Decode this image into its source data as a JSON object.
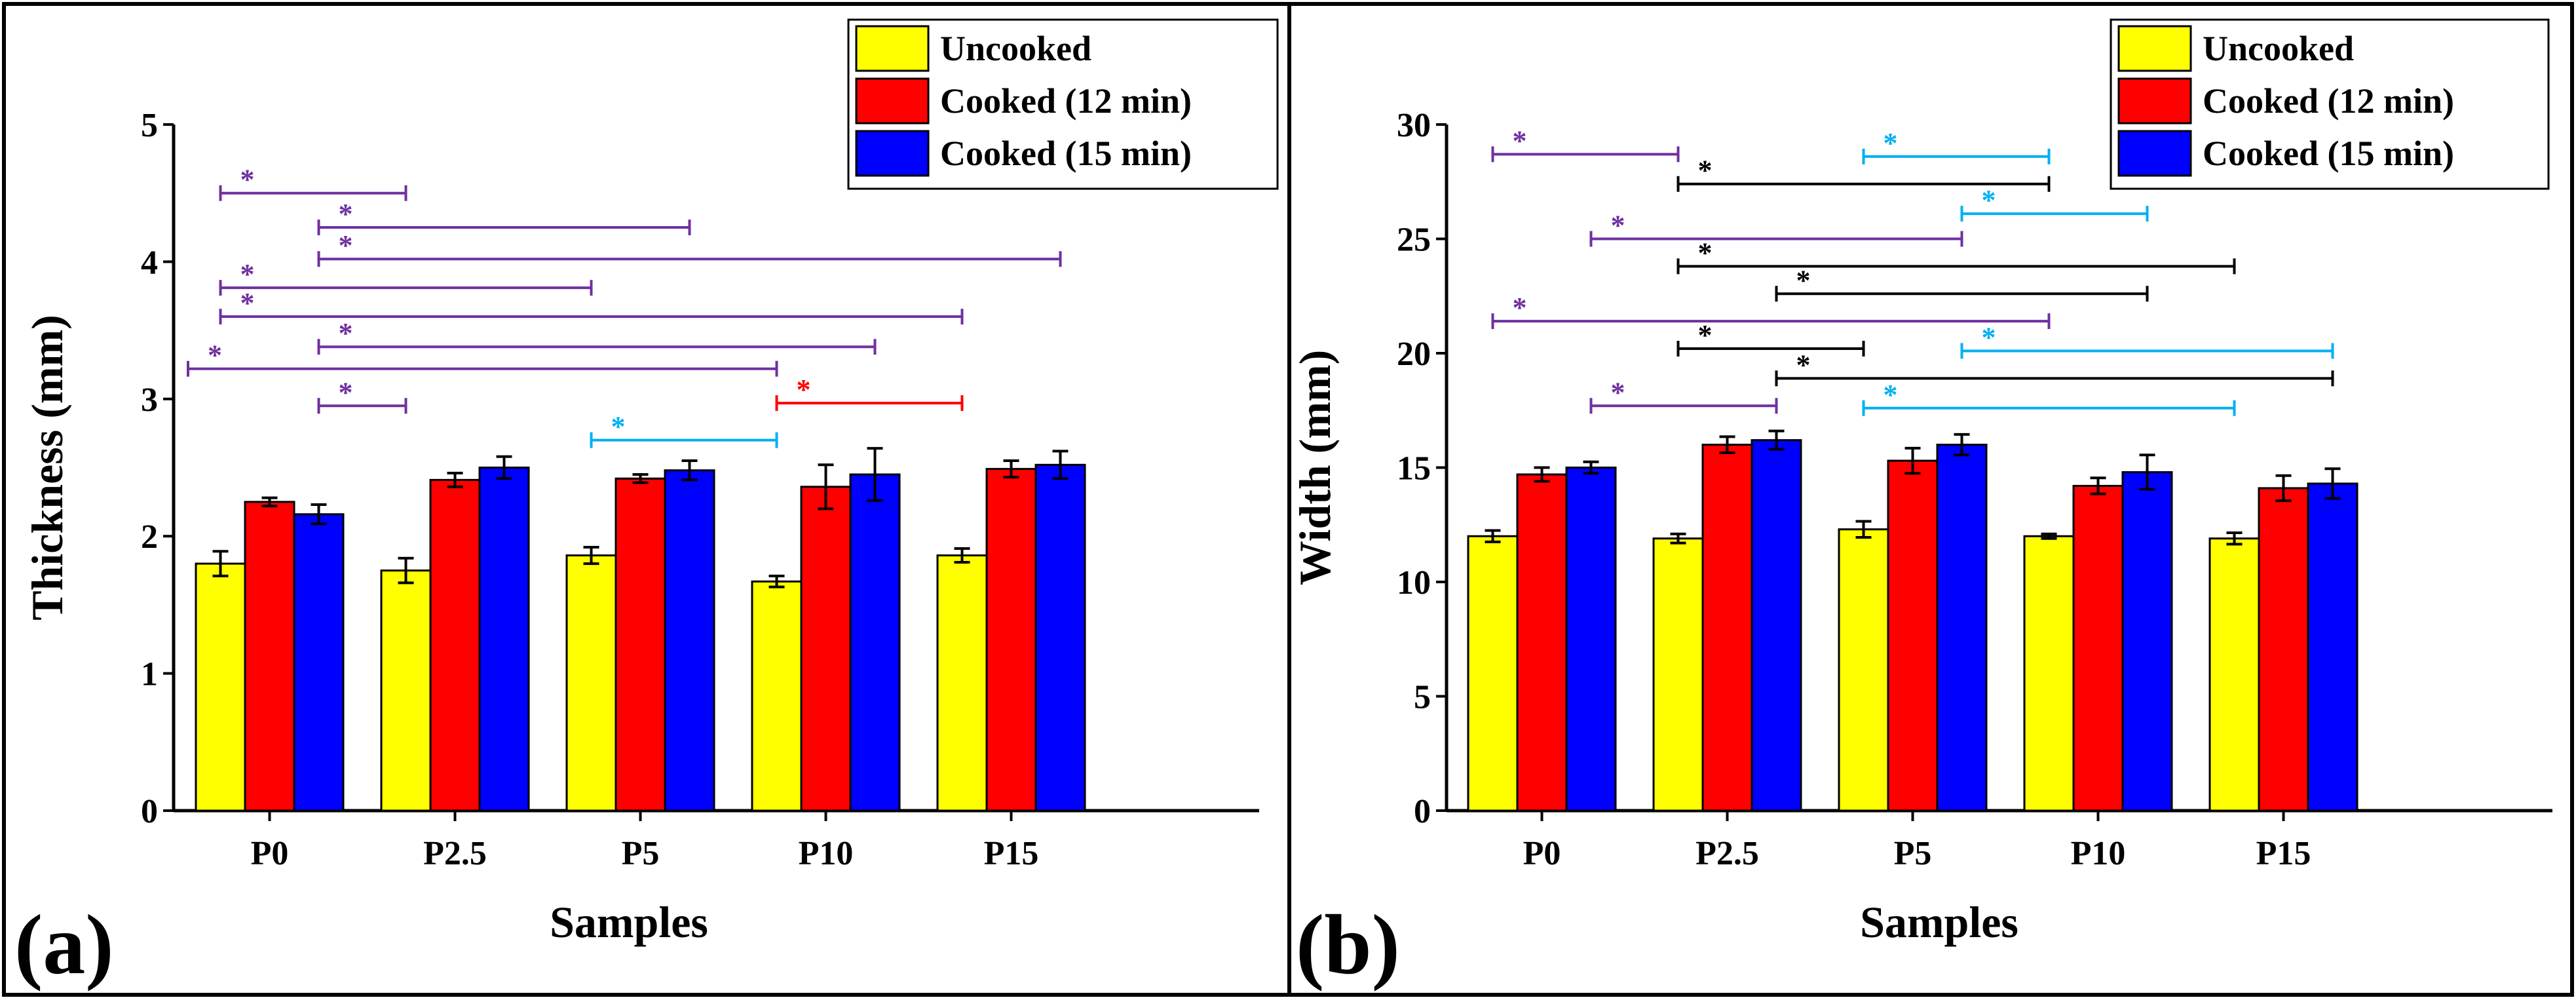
{
  "colors": {
    "uncooked": "#ffff00",
    "cooked12": "#ff0000",
    "cooked15": "#0000ff",
    "purple": "#7030a0",
    "black": "#000000",
    "cyan": "#00b0f0",
    "red": "#ff0000"
  },
  "chart_data": [
    {
      "type": "bar",
      "panel_label": "(a)",
      "xlabel": "Samples",
      "ylabel": "Thickness (mm)",
      "ylim": [
        0,
        5
      ],
      "yticks": [
        "0",
        "1",
        "2",
        "3",
        "4",
        "5"
      ],
      "categories": [
        "P0",
        "P2.5",
        "P5",
        "P10",
        "P15"
      ],
      "legend_position": "top-right",
      "series": [
        {
          "name": "Uncooked",
          "color": "#ffff00",
          "values": [
            1.8,
            1.75,
            1.86,
            1.67,
            1.86
          ],
          "errors": [
            0.09,
            0.09,
            0.06,
            0.04,
            0.05
          ]
        },
        {
          "name": "Cooked (12 min)",
          "color": "#ff0000",
          "values": [
            2.25,
            2.41,
            2.42,
            2.36,
            2.49
          ],
          "errors": [
            0.03,
            0.05,
            0.03,
            0.16,
            0.06
          ]
        },
        {
          "name": "Cooked (15 min)",
          "color": "#0000ff",
          "values": [
            2.16,
            2.5,
            2.48,
            2.45,
            2.52
          ],
          "errors": [
            0.07,
            0.08,
            0.07,
            0.19,
            0.1
          ]
        }
      ],
      "significance": [
        {
          "from": "P0.uncooked",
          "to": "P2.5.uncooked",
          "y": 4.5,
          "color": "#7030a0",
          "label": "*"
        },
        {
          "from": "P0.cooked15",
          "to": "P5.cooked15",
          "y": 4.25,
          "color": "#7030a0",
          "label": "*"
        },
        {
          "from": "P0.cooked15",
          "to": "P15.cooked15",
          "y": 4.02,
          "color": "#7030a0",
          "label": "*"
        },
        {
          "from": "P0.uncooked",
          "to": "P5.uncooked",
          "y": 3.81,
          "color": "#7030a0",
          "label": "*"
        },
        {
          "from": "P0.uncooked",
          "to": "P15.uncooked",
          "y": 3.6,
          "color": "#7030a0",
          "label": "*"
        },
        {
          "from": "P0.cooked15",
          "to": "P10.cooked15",
          "y": 3.38,
          "color": "#7030a0",
          "label": "*"
        },
        {
          "from": "P0.group",
          "to": "P10.uncooked",
          "y": 3.22,
          "color": "#7030a0",
          "label": "*"
        },
        {
          "from": "P0.cooked15",
          "to": "P2.5.uncooked",
          "y": 2.95,
          "color": "#7030a0",
          "label": "*"
        },
        {
          "from": "P10.uncooked",
          "to": "P15.uncooked",
          "y": 2.97,
          "color": "#ff0000",
          "label": "*"
        },
        {
          "from": "P5.uncooked",
          "to": "P10.uncooked",
          "y": 2.7,
          "color": "#00b0f0",
          "label": "*"
        }
      ]
    },
    {
      "type": "bar",
      "panel_label": "(b)",
      "xlabel": "Samples",
      "ylabel": "Width (mm)",
      "ylim": [
        0,
        30
      ],
      "yticks": [
        "0",
        "5",
        "10",
        "15",
        "20",
        "25",
        "30"
      ],
      "categories": [
        "P0",
        "P2.5",
        "P5",
        "P10",
        "P15"
      ],
      "legend_position": "top-right",
      "series": [
        {
          "name": "Uncooked",
          "color": "#ffff00",
          "values": [
            12.0,
            11.9,
            12.3,
            12.0,
            11.9
          ],
          "errors": [
            0.25,
            0.2,
            0.35,
            0.1,
            0.25
          ]
        },
        {
          "name": "Cooked (12 min)",
          "color": "#ff0000",
          "values": [
            14.7,
            16.0,
            15.3,
            14.2,
            14.1
          ],
          "errors": [
            0.3,
            0.35,
            0.55,
            0.35,
            0.55
          ]
        },
        {
          "name": "Cooked (15 min)",
          "color": "#0000ff",
          "values": [
            15.0,
            16.2,
            16.0,
            14.8,
            14.3
          ],
          "errors": [
            0.25,
            0.4,
            0.45,
            0.75,
            0.65
          ]
        }
      ],
      "significance": [
        {
          "from": "P0.uncooked",
          "to": "P2.5.uncooked",
          "y": 28.7,
          "color": "#7030a0",
          "label": "*"
        },
        {
          "from": "P5.uncooked",
          "to": "P10.uncooked",
          "y": 28.6,
          "color": "#00b0f0",
          "label": "*"
        },
        {
          "from": "P2.5.uncooked",
          "to": "P10.uncooked",
          "y": 27.4,
          "color": "#000000",
          "label": "*"
        },
        {
          "from": "P5.cooked15",
          "to": "P10.cooked15",
          "y": 26.1,
          "color": "#00b0f0",
          "label": "*"
        },
        {
          "from": "P0.cooked15",
          "to": "P5.cooked15",
          "y": 25.0,
          "color": "#7030a0",
          "label": "*"
        },
        {
          "from": "P2.5.uncooked",
          "to": "P15.uncooked",
          "y": 23.8,
          "color": "#000000",
          "label": "*"
        },
        {
          "from": "P2.5.cooked15",
          "to": "P10.cooked15",
          "y": 22.6,
          "color": "#000000",
          "label": "*"
        },
        {
          "from": "P0.uncooked",
          "to": "P10.uncooked",
          "y": 21.4,
          "color": "#7030a0",
          "label": "*"
        },
        {
          "from": "P2.5.uncooked",
          "to": "P5.uncooked",
          "y": 20.2,
          "color": "#000000",
          "label": "*"
        },
        {
          "from": "P5.cooked15",
          "to": "P15.cooked15",
          "y": 20.1,
          "color": "#00b0f0",
          "label": "*"
        },
        {
          "from": "P2.5.cooked15",
          "to": "P15.cooked15",
          "y": 18.9,
          "color": "#000000",
          "label": "*"
        },
        {
          "from": "P0.cooked15",
          "to": "P2.5.cooked15",
          "y": 17.7,
          "color": "#7030a0",
          "label": "*"
        },
        {
          "from": "P5.uncooked",
          "to": "P15.uncooked",
          "y": 17.6,
          "color": "#00b0f0",
          "label": "*"
        }
      ]
    }
  ]
}
